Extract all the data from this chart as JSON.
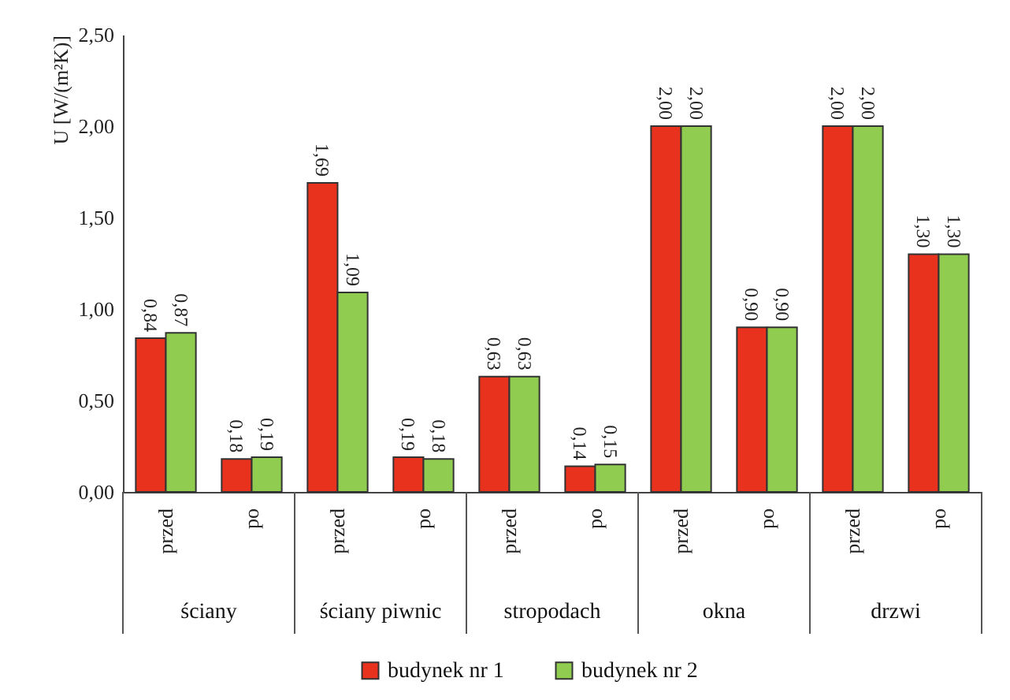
{
  "chart_data": {
    "type": "bar",
    "ylabel": "U [W/(m²K)]",
    "categories": [
      "przed",
      "po",
      "przed",
      "po",
      "przed",
      "po",
      "przed",
      "po",
      "przed",
      "po"
    ],
    "annotations": [
      "ściany",
      "ściany piwnic",
      "stropodach",
      "okna",
      "drzwi"
    ],
    "series": [
      {
        "name": "budynek nr 1",
        "color": "#e8321e",
        "values": [
          0.84,
          0.18,
          1.69,
          0.19,
          0.63,
          0.14,
          2.0,
          0.9,
          2.0,
          1.3
        ],
        "value_labels": [
          "0,84",
          "0,18",
          "1,69",
          "0,19",
          "0,63",
          "0,14",
          "2,00",
          "0,90",
          "2,00",
          "1,30"
        ]
      },
      {
        "name": "budynek nr 2",
        "color": "#8fcc50",
        "values": [
          0.87,
          0.19,
          1.09,
          0.18,
          0.63,
          0.15,
          2.0,
          0.9,
          2.0,
          1.3
        ],
        "value_labels": [
          "0,87",
          "0,19",
          "1,09",
          "0,18",
          "0,63",
          "0,15",
          "2,00",
          "0,90",
          "2,00",
          "1,30"
        ]
      }
    ],
    "ylim": [
      0,
      2.5
    ],
    "yticks": [
      {
        "value": 0,
        "label": "0,00"
      },
      {
        "value": 0.5,
        "label": "0,50"
      },
      {
        "value": 1,
        "label": "1,00"
      },
      {
        "value": 1.5,
        "label": "1,50"
      },
      {
        "value": 2,
        "label": "2,00"
      },
      {
        "value": 2.5,
        "label": "2,50"
      }
    ],
    "grid": false,
    "legend": "bottom"
  }
}
